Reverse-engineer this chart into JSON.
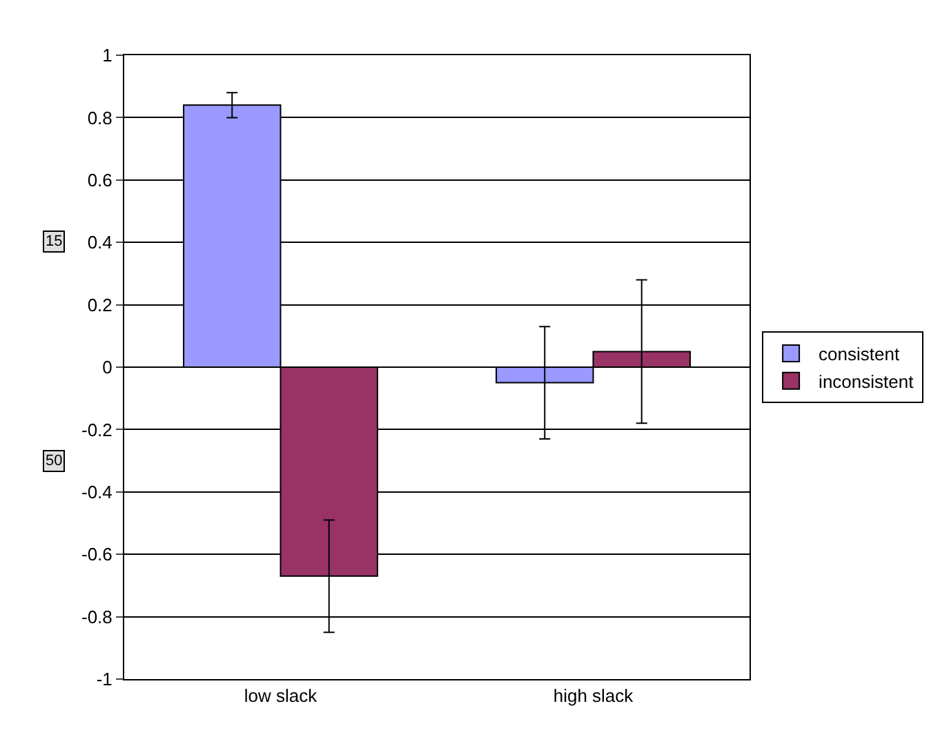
{
  "chart_data": {
    "type": "bar",
    "categories": [
      "low slack",
      "high slack"
    ],
    "series": [
      {
        "name": "consistent",
        "color": "#9999ff",
        "values": [
          0.84,
          -0.05
        ],
        "errors": [
          0.04,
          0.18
        ]
      },
      {
        "name": "inconsistent",
        "color": "#993366",
        "values": [
          -0.67,
          0.05
        ],
        "errors": [
          0.18,
          0.23
        ]
      }
    ],
    "ylim": [
      -1,
      1
    ],
    "yticks": [
      -1,
      -0.8,
      -0.6,
      -0.4,
      -0.2,
      0,
      0.2,
      0.4,
      0.6,
      0.8,
      1
    ],
    "grid": "y",
    "legend": "right",
    "annotations": [
      {
        "text": "15"
      },
      {
        "text": "50"
      }
    ]
  }
}
